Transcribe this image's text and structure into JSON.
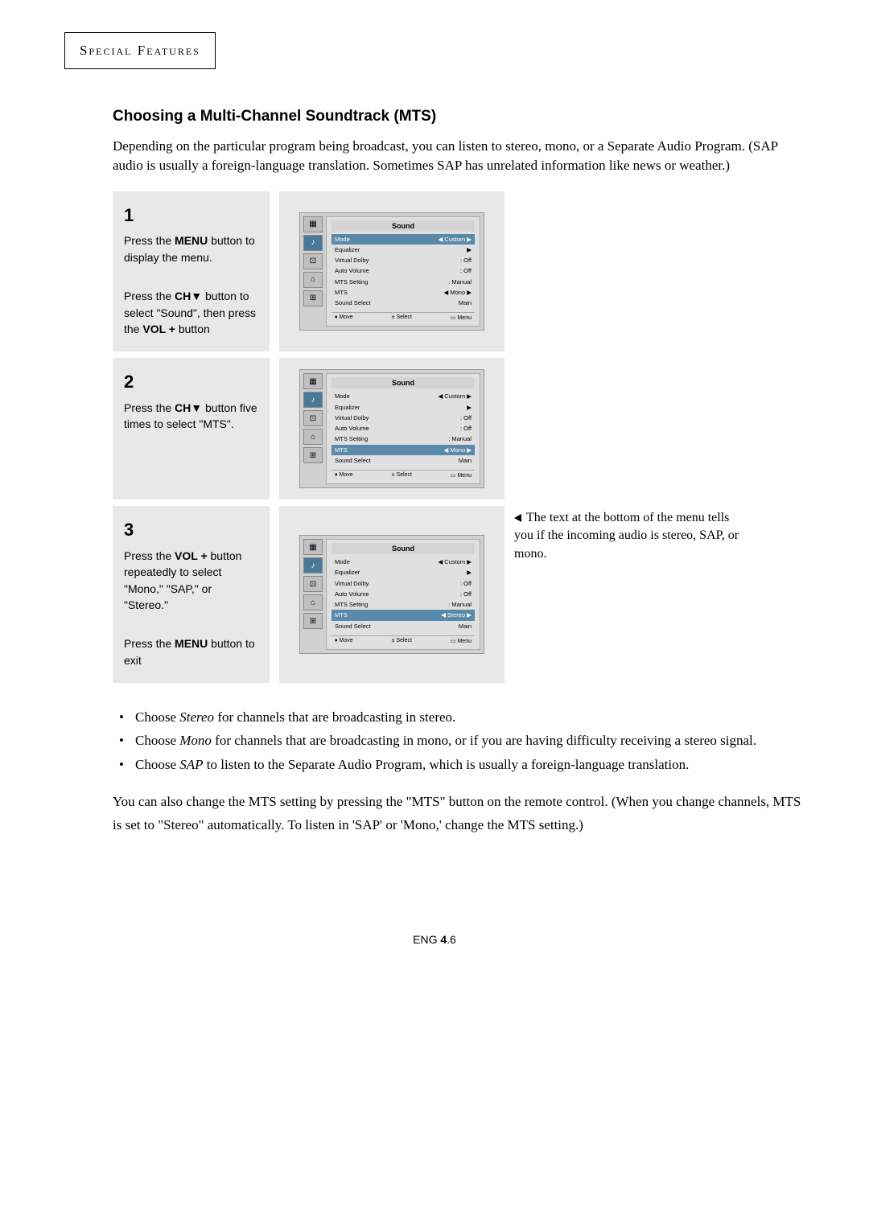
{
  "header": "Special Features",
  "section_title": "Choosing a Multi-Channel Soundtrack (MTS)",
  "intro": "Depending on the particular program being broadcast, you can listen to stereo, mono, or a Separate Audio Program. (SAP audio is usually a foreign-language translation. Sometimes SAP has unrelated information like news or weather.)",
  "steps": [
    {
      "num": "1",
      "lines": [
        "Press the <b>MENU</b> button to display the menu.",
        "",
        "Press the <b>CH▼</b> button to select \"Sound\", then press the <b>VOL +</b> button"
      ],
      "menu": {
        "title": "Sound",
        "highlight_index": 0,
        "items": [
          {
            "label": "Mode",
            "value": "◀ Custom ▶"
          },
          {
            "label": "Equalizer",
            "value": "▶"
          },
          {
            "label": "Virtual Dolby",
            "value": ": Off"
          },
          {
            "label": "Auto Volume",
            "value": ": Off"
          },
          {
            "label": "MTS Setting",
            "value": ": Manual"
          },
          {
            "label": "MTS",
            "value": "◀  Mono  ▶"
          },
          {
            "label": "Sound Select",
            "value": "Main"
          }
        ],
        "footer": [
          "♦ Move",
          "± Select",
          "▭ Menu"
        ]
      }
    },
    {
      "num": "2",
      "lines": [
        "Press the <b>CH▼</b> button five times to select \"MTS\"."
      ],
      "menu": {
        "title": "Sound",
        "highlight_index": 5,
        "items": [
          {
            "label": "Mode",
            "value": "◀ Custom ▶"
          },
          {
            "label": "Equalizer",
            "value": "▶"
          },
          {
            "label": "Virtual Dolby",
            "value": ": Off"
          },
          {
            "label": "Auto Volume",
            "value": ": Off"
          },
          {
            "label": "MTS Setting",
            "value": ": Manual"
          },
          {
            "label": "MTS",
            "value": "◀  Mono  ▶"
          },
          {
            "label": "Sound Select",
            "value": "Main"
          }
        ],
        "footer": [
          "♦ Move",
          "± Select",
          "▭ Menu"
        ]
      }
    },
    {
      "num": "3",
      "lines": [
        "Press the <b>VOL +</b> button repeatedly to select \"Mono,\" \"SAP,\" or \"Stereo.\"",
        "",
        "Press the <b>MENU</b> button to exit"
      ],
      "menu": {
        "title": "Sound",
        "highlight_index": 5,
        "items": [
          {
            "label": "Mode",
            "value": "◀ Custom ▶"
          },
          {
            "label": "Equalizer",
            "value": "▶"
          },
          {
            "label": "Virtual Dolby",
            "value": ": Off"
          },
          {
            "label": "Auto Volume",
            "value": ": Off"
          },
          {
            "label": "MTS Setting",
            "value": ": Manual"
          },
          {
            "label": "MTS",
            "value": "◀  Stereo ▶"
          },
          {
            "label": "Sound Select",
            "value": "Main"
          }
        ],
        "footer": [
          "♦ Move",
          "± Select",
          "▭ Menu"
        ]
      },
      "note": "The text at the bottom of the menu tells you if the incoming audio is stereo, SAP, or mono."
    }
  ],
  "bullets": [
    "Choose <em>Stereo</em> for channels that are broadcasting in stereo.",
    "Choose <em>Mono</em> for channels that are broadcasting in mono, or if you are having difficulty receiving a stereo signal.",
    "Choose <em>SAP</em> to listen to the Separate Audio Program, which is usually a foreign-language translation."
  ],
  "closing": "You can also change the MTS setting by pressing the \"MTS\" button on the remote control. (When you change channels, MTS is set to \"Stereo\" automatically. To listen in 'SAP' or 'Mono,' change the MTS setting.)",
  "page_footer": {
    "prefix": "ENG ",
    "bold": "4",
    "suffix": ".6"
  },
  "sidebar_icons": [
    "▦",
    "♪",
    "⊡",
    "⌂",
    "⊞"
  ],
  "active_sidebar_index": 1
}
